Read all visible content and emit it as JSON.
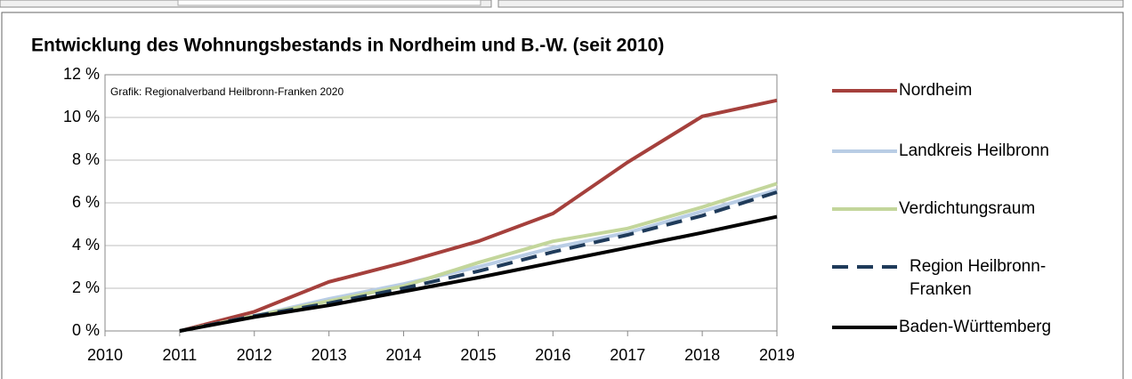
{
  "chart_data": {
    "type": "line",
    "title": "Entwicklung des Wohnungsbestands in Nordheim und B.-W. (seit 2010)",
    "annotation": "Grafik: Regionalverband Heilbronn-Franken 2020",
    "categories": [
      "2010",
      "2011",
      "2012",
      "2013",
      "2014",
      "2015",
      "2016",
      "2017",
      "2018",
      "2019"
    ],
    "series": [
      {
        "name": "Nordheim",
        "color": "#a5403c",
        "values": [
          null,
          0,
          0.9,
          2.3,
          3.2,
          4.2,
          5.5,
          7.9,
          10.05,
          10.8
        ]
      },
      {
        "name": "Landkreis Heilbronn",
        "color": "#b9cde5",
        "values": [
          null,
          0,
          0.7,
          1.5,
          2.2,
          3.0,
          3.9,
          4.6,
          5.6,
          6.6
        ]
      },
      {
        "name": "Verdichtungsraum",
        "color": "#c3d69b",
        "values": [
          null,
          0,
          0.7,
          1.4,
          2.1,
          3.2,
          4.2,
          4.8,
          5.8,
          6.9
        ]
      },
      {
        "name": "Region Heilbronn-Franken",
        "color": "#1f3b5a",
        "dashed": true,
        "values": [
          null,
          0,
          0.7,
          1.3,
          2.0,
          2.8,
          3.7,
          4.5,
          5.4,
          6.5
        ]
      },
      {
        "name": "Baden-Württemberg",
        "color": "#000000",
        "values": [
          null,
          0,
          0.65,
          1.2,
          1.85,
          2.5,
          3.2,
          3.9,
          4.6,
          5.35
        ]
      }
    ],
    "ylim": [
      0,
      12
    ],
    "yticks": [
      {
        "value": 0,
        "label": "0 %"
      },
      {
        "value": 2,
        "label": "2 %"
      },
      {
        "value": 4,
        "label": "4 %"
      },
      {
        "value": 6,
        "label": "6 %"
      },
      {
        "value": 8,
        "label": "8 %"
      },
      {
        "value": 10,
        "label": "10 %"
      },
      {
        "value": 12,
        "label": "12 %"
      }
    ],
    "grid": true,
    "legend": "right"
  }
}
